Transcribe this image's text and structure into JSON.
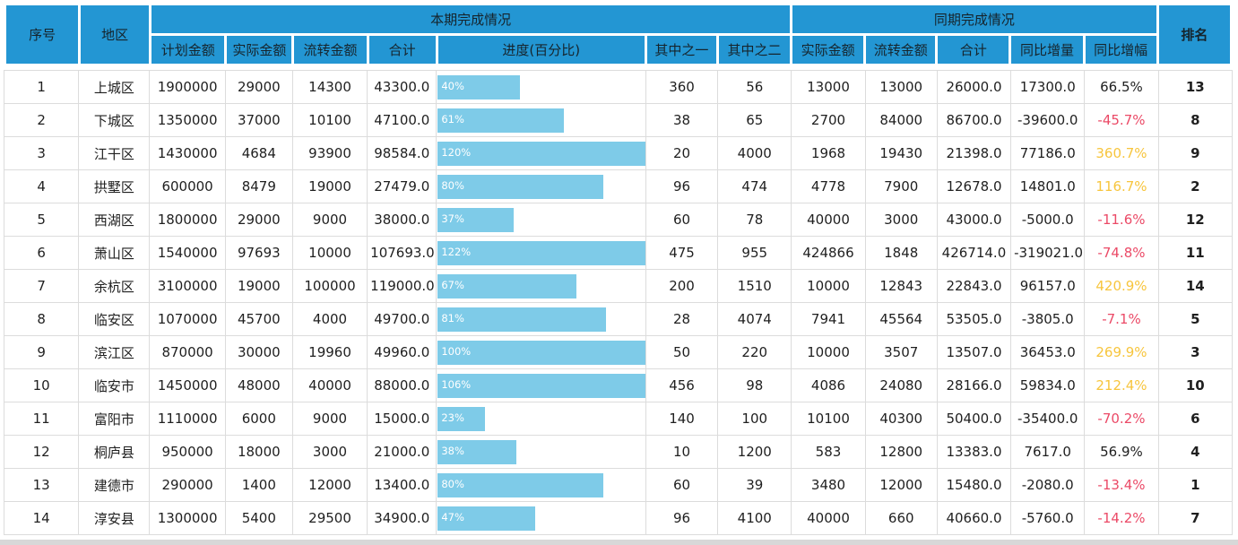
{
  "colors": {
    "header_bg": "#2396d3",
    "bar_fill": "#7ecbe8",
    "negative_text": "#eb4a67",
    "over_100_text": "#f7c53d",
    "grid_line": "#dcdcdc",
    "data_text": "#1f1f1f"
  },
  "chart_data": {
    "type": "table",
    "group_headers": {
      "current": "本期完成情况",
      "prior": "同期完成情况"
    },
    "columns": [
      "序号",
      "地区",
      "计划金额",
      "实际金额",
      "流转金额",
      "合计",
      "进度(百分比)",
      "其中之一",
      "其中之二",
      "实际金额",
      "流转金额",
      "合计",
      "同比增量",
      "同比增幅",
      "排名"
    ],
    "progress_percent": [
      40,
      61,
      120,
      80,
      37,
      122,
      67,
      81,
      100,
      106,
      23,
      38,
      80,
      47
    ],
    "color_rules": {
      "negative": "red",
      "over_100_percent": "gold",
      "default": "black"
    },
    "rows": [
      [
        "1",
        "上城区",
        "1900000",
        "29000",
        "14300",
        "43300.0",
        "40%",
        "360",
        "56",
        "13000",
        "13000",
        "26000.0",
        "17300.0",
        "66.5%",
        "13"
      ],
      [
        "2",
        "下城区",
        "1350000",
        "37000",
        "10100",
        "47100.0",
        "61%",
        "38",
        "65",
        "2700",
        "84000",
        "86700.0",
        "-39600.0",
        "-45.7%",
        "8"
      ],
      [
        "3",
        "江干区",
        "1430000",
        "4684",
        "93900",
        "98584.0",
        "120%",
        "20",
        "4000",
        "1968",
        "19430",
        "21398.0",
        "77186.0",
        "360.7%",
        "9"
      ],
      [
        "4",
        "拱墅区",
        "600000",
        "8479",
        "19000",
        "27479.0",
        "80%",
        "96",
        "474",
        "4778",
        "7900",
        "12678.0",
        "14801.0",
        "116.7%",
        "2"
      ],
      [
        "5",
        "西湖区",
        "1800000",
        "29000",
        "9000",
        "38000.0",
        "37%",
        "60",
        "78",
        "40000",
        "3000",
        "43000.0",
        "-5000.0",
        "-11.6%",
        "12"
      ],
      [
        "6",
        "萧山区",
        "1540000",
        "97693",
        "10000",
        "107693.0",
        "122%",
        "475",
        "955",
        "424866",
        "1848",
        "426714.0",
        "-319021.0",
        "-74.8%",
        "11"
      ],
      [
        "7",
        "余杭区",
        "3100000",
        "19000",
        "100000",
        "119000.0",
        "67%",
        "200",
        "1510",
        "10000",
        "12843",
        "22843.0",
        "96157.0",
        "420.9%",
        "14"
      ],
      [
        "8",
        "临安区",
        "1070000",
        "45700",
        "4000",
        "49700.0",
        "81%",
        "28",
        "4074",
        "7941",
        "45564",
        "53505.0",
        "-3805.0",
        "-7.1%",
        "5"
      ],
      [
        "9",
        "滨江区",
        "870000",
        "30000",
        "19960",
        "49960.0",
        "100%",
        "50",
        "220",
        "10000",
        "3507",
        "13507.0",
        "36453.0",
        "269.9%",
        "3"
      ],
      [
        "10",
        "临安市",
        "1450000",
        "48000",
        "40000",
        "88000.0",
        "106%",
        "456",
        "98",
        "4086",
        "24080",
        "28166.0",
        "59834.0",
        "212.4%",
        "10"
      ],
      [
        "11",
        "富阳市",
        "1110000",
        "6000",
        "9000",
        "15000.0",
        "23%",
        "140",
        "100",
        "10100",
        "40300",
        "50400.0",
        "-35400.0",
        "-70.2%",
        "6"
      ],
      [
        "12",
        "桐庐县",
        "950000",
        "18000",
        "3000",
        "21000.0",
        "38%",
        "10",
        "1200",
        "583",
        "12800",
        "13383.0",
        "7617.0",
        "56.9%",
        "4"
      ],
      [
        "13",
        "建德市",
        "290000",
        "1400",
        "12000",
        "13400.0",
        "80%",
        "60",
        "39",
        "3480",
        "12000",
        "15480.0",
        "-2080.0",
        "-13.4%",
        "1"
      ],
      [
        "14",
        "淳安县",
        "1300000",
        "5400",
        "29500",
        "34900.0",
        "47%",
        "96",
        "4100",
        "40000",
        "660",
        "40660.0",
        "-5760.0",
        "-14.2%",
        "7"
      ]
    ]
  }
}
